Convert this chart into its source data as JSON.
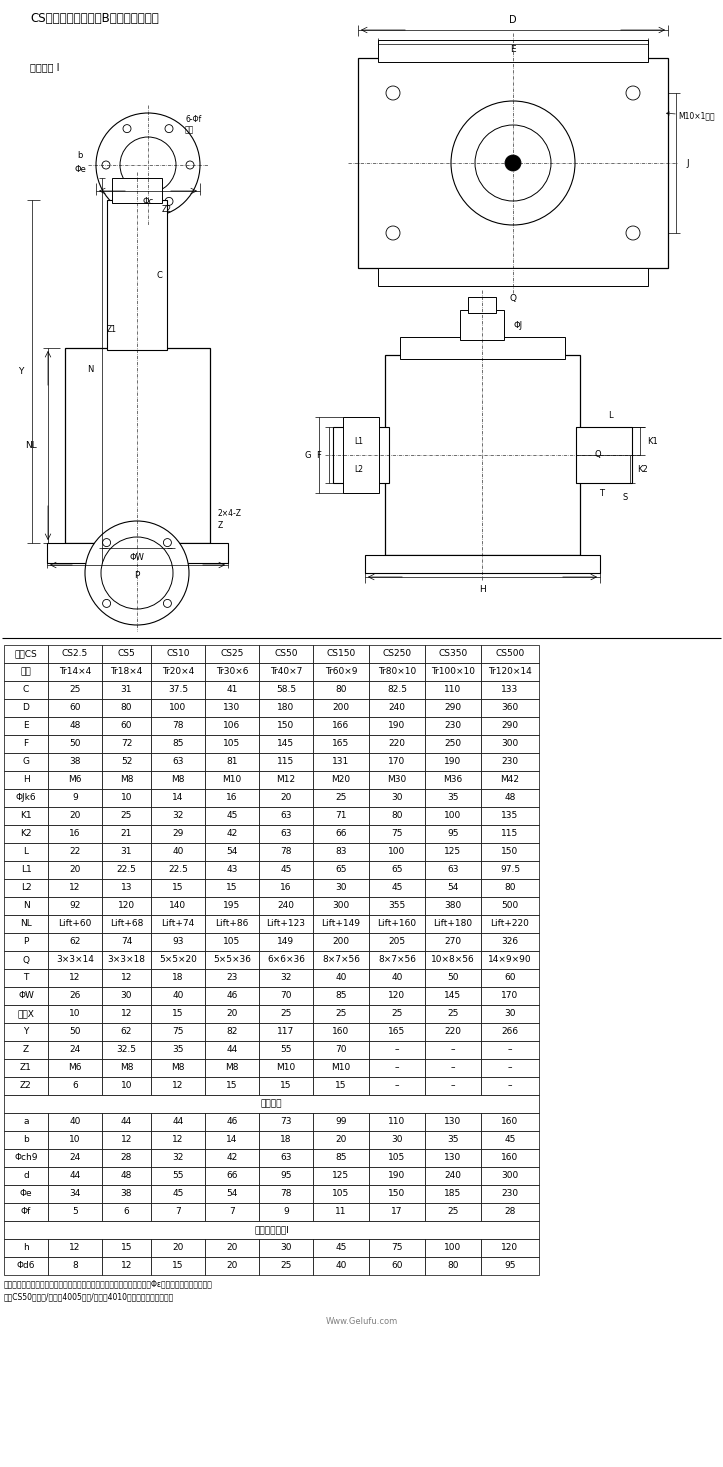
{
  "title": "CS型蜁轮丝杠升降机B型结构联结尺寸",
  "website": "Www.Gelufu.com",
  "header_row": [
    "型号CS",
    "CS2.5",
    "CS5",
    "CS10",
    "CS25",
    "CS50",
    "CS150",
    "CS250",
    "CS350",
    "CS500"
  ],
  "table_data": [
    [
      "丝杠",
      "Tr14×4",
      "Tr18×4",
      "Tr20×4",
      "Tr30×6",
      "Tr40×7",
      "Tr60×9",
      "Tr80×10",
      "Tr100×10",
      "Tr120×14"
    ],
    [
      "C",
      "25",
      "31",
      "37.5",
      "41",
      "58.5",
      "80",
      "82.5",
      "110",
      "133"
    ],
    [
      "D",
      "60",
      "80",
      "100",
      "130",
      "180",
      "200",
      "240",
      "290",
      "360"
    ],
    [
      "E",
      "48",
      "60",
      "78",
      "106",
      "150",
      "166",
      "190",
      "230",
      "290"
    ],
    [
      "F",
      "50",
      "72",
      "85",
      "105",
      "145",
      "165",
      "220",
      "250",
      "300"
    ],
    [
      "G",
      "38",
      "52",
      "63",
      "81",
      "115",
      "131",
      "170",
      "190",
      "230"
    ],
    [
      "H",
      "M6",
      "M8",
      "M8",
      "M10",
      "M12",
      "M20",
      "M30",
      "M36",
      "M42"
    ],
    [
      "ΦJk6",
      "9",
      "10",
      "14",
      "16",
      "20",
      "25",
      "30",
      "35",
      "48"
    ],
    [
      "K1",
      "20",
      "25",
      "32",
      "45",
      "63",
      "71",
      "80",
      "100",
      "135"
    ],
    [
      "K2",
      "16",
      "21",
      "29",
      "42",
      "63",
      "66",
      "75",
      "95",
      "115"
    ],
    [
      "L",
      "22",
      "31",
      "40",
      "54",
      "78",
      "83",
      "100",
      "125",
      "150"
    ],
    [
      "L1",
      "20",
      "22.5",
      "22.5",
      "43",
      "45",
      "65",
      "65",
      "63",
      "97.5"
    ],
    [
      "L2",
      "12",
      "13",
      "15",
      "15",
      "16",
      "30",
      "45",
      "54",
      "80"
    ],
    [
      "N",
      "92",
      "120",
      "140",
      "195",
      "240",
      "300",
      "355",
      "380",
      "500"
    ],
    [
      "NL",
      "Lift+60",
      "Lift+68",
      "Lift+74",
      "Lift+86",
      "Lift+123",
      "Lift+149",
      "Lift+160",
      "Lift+180",
      "Lift+220"
    ],
    [
      "P",
      "62",
      "74",
      "93",
      "105",
      "149",
      "200",
      "205",
      "270",
      "326"
    ],
    [
      "Q",
      "3×3×14",
      "3×3×18",
      "5×5×20",
      "5×5×36",
      "6×6×36",
      "8×7×56",
      "8×7×56",
      "10×8×56",
      "14×9×90"
    ],
    [
      "T",
      "12",
      "12",
      "18",
      "23",
      "32",
      "40",
      "40",
      "50",
      "60"
    ],
    [
      "ΦW",
      "26",
      "30",
      "40",
      "46",
      "70",
      "85",
      "120",
      "145",
      "170"
    ],
    [
      "裕度X",
      "10",
      "12",
      "15",
      "20",
      "25",
      "25",
      "25",
      "25",
      "30"
    ],
    [
      "Y",
      "50",
      "62",
      "75",
      "82",
      "117",
      "160",
      "165",
      "220",
      "266"
    ],
    [
      "Z",
      "24",
      "32.5",
      "35",
      "44",
      "55",
      "70",
      "–",
      "–",
      "–"
    ],
    [
      "Z1",
      "M6",
      "M8",
      "M8",
      "M8",
      "M10",
      "M10",
      "–",
      "–",
      "–"
    ],
    [
      "Z2",
      "6",
      "10",
      "12",
      "15",
      "15",
      "15",
      "–",
      "–",
      "–"
    ]
  ],
  "motion_nut_header": "运动螺母",
  "motion_nut_data": [
    [
      "a",
      "40",
      "44",
      "44",
      "46",
      "73",
      "99",
      "110",
      "130",
      "160"
    ],
    [
      "b",
      "10",
      "12",
      "12",
      "14",
      "18",
      "20",
      "30",
      "35",
      "45"
    ],
    [
      "Φch9",
      "24",
      "28",
      "32",
      "42",
      "63",
      "85",
      "105",
      "130",
      "160"
    ],
    [
      "d",
      "44",
      "48",
      "55",
      "66",
      "95",
      "125",
      "190",
      "240",
      "300"
    ],
    [
      "Φe",
      "34",
      "38",
      "45",
      "54",
      "78",
      "105",
      "150",
      "185",
      "230"
    ],
    [
      "Φf",
      "5",
      "6",
      "7",
      "7",
      "9",
      "11",
      "17",
      "25",
      "28"
    ]
  ],
  "connector_header": "丝杠接头类型I",
  "connector_data": [
    [
      "h",
      "12",
      "15",
      "20",
      "20",
      "30",
      "45",
      "75",
      "100",
      "120"
    ],
    [
      "Φd6",
      "8",
      "12",
      "15",
      "20",
      "25",
      "40",
      "60",
      "80",
      "95"
    ]
  ],
  "note_line1": "注：运动螺母尺寸中（）内的数字仅对滚珠丝杠型适用，且滚珠丝杠的（Φε）在外側有标准的沉孔，",
  "note_line2": "其中CS50型的「/」前为4005，「/」后为4010滚珠丝杠的螺母尺寸。"
}
